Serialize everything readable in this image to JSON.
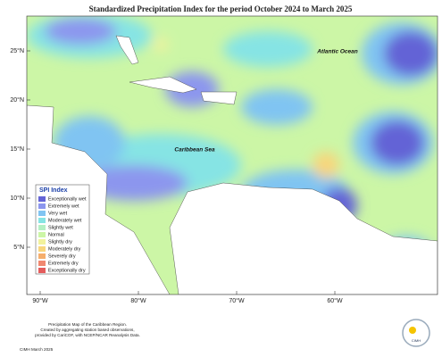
{
  "title": "Standardized Precipitation Index for the period October 2024 to March 2025",
  "labels": [
    "Atlantic Ocean",
    "Caribbean Sea"
  ],
  "latitude_ticks": [
    "25°N",
    "20°N",
    "15°N",
    "10°N",
    "5°N"
  ],
  "longitude_ticks": [
    "90°W",
    "80°W",
    "70°W",
    "60°W"
  ],
  "legend": {
    "title": "SPI Index",
    "items": [
      {
        "label": "Exceptionally wet",
        "color": "#6464d6"
      },
      {
        "label": "Extremely wet",
        "color": "#8c96ee"
      },
      {
        "label": "Very wet",
        "color": "#80c4f2"
      },
      {
        "label": "Moderately wet",
        "color": "#86e4e4"
      },
      {
        "label": "Slightly wet",
        "color": "#b4f0c4"
      },
      {
        "label": "Normal",
        "color": "#ccf6a6"
      },
      {
        "label": "Slightly dry",
        "color": "#f2f29c"
      },
      {
        "label": "Moderately dry",
        "color": "#f8d67c"
      },
      {
        "label": "Severely dry",
        "color": "#f6ae6c"
      },
      {
        "label": "Extremely dry",
        "color": "#f08870"
      },
      {
        "label": "Exceptionally dry",
        "color": "#e45c5c"
      }
    ]
  },
  "footer": {
    "lines": [
      "Precipitation Map of the Caribbean Region.",
      "Created by aggregating station based observations,",
      "provided by CariCOF, with NCEP/NCAR Reanalysis Data."
    ],
    "credit": "CIMH March 2025"
  },
  "logo": "CIMH"
}
